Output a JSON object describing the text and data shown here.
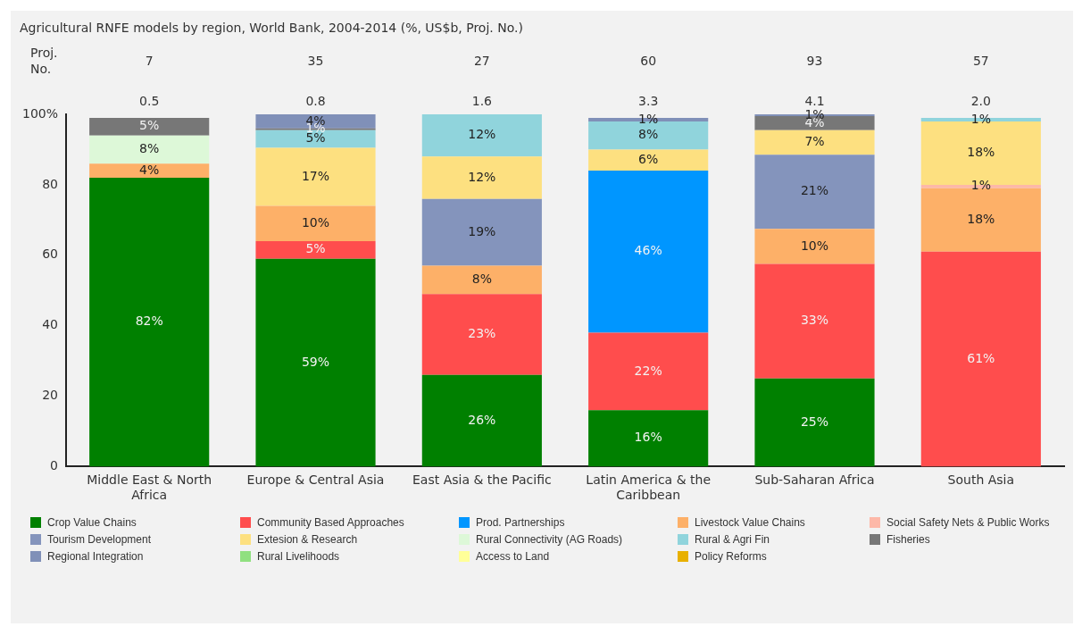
{
  "chart_data": {
    "type": "bar",
    "stacked": true,
    "title": "Agricultural RNFE models by region, World Bank, 2004-2014 (%, US$b, Proj. No.)",
    "categories": [
      "Middle East & North Africa",
      "Europe & Central Asia",
      "East Asia & the Pacific",
      "Latin America & the Caribbean",
      "Sub-Saharan Africa",
      "South Asia"
    ],
    "ylim": [
      0,
      100
    ],
    "yticks": [
      0,
      20,
      40,
      60,
      80,
      {
        "value": 100,
        "label": "100%"
      }
    ],
    "grid": false,
    "legend": "bottom",
    "series": [
      {
        "name": "Crop Value Chains",
        "color": "#008000",
        "values": [
          82,
          59,
          26,
          16,
          25,
          null
        ],
        "value_labels": [
          "82%",
          "59%",
          "26%",
          "16%",
          "25%",
          null
        ]
      },
      {
        "name": "Community Based Approaches",
        "color": "#ff4d4d",
        "values": [
          null,
          5,
          23,
          22,
          32.5,
          61
        ],
        "value_labels": [
          null,
          "5%",
          "23%",
          "22%",
          "33%",
          "61%"
        ]
      },
      {
        "name": "Prod. Partnerships",
        "color": "#0096ff",
        "values": [
          null,
          null,
          null,
          46,
          null,
          null
        ],
        "value_labels": [
          null,
          null,
          null,
          "46%",
          null,
          null
        ]
      },
      {
        "name": "Livestock Value Chains",
        "color": "#fdb068",
        "values": [
          4,
          10,
          8,
          null,
          10,
          18
        ],
        "value_labels": [
          "4%",
          "10%",
          "8%",
          null,
          "10%",
          "18%"
        ]
      },
      {
        "name": "Social Safety Nets & Public Works",
        "color": "#fdb8a8",
        "values": [
          null,
          null,
          null,
          null,
          null,
          1
        ],
        "value_labels": [
          null,
          null,
          null,
          null,
          null,
          "1%"
        ]
      },
      {
        "name": "Tourism Development",
        "color": "#8494bc",
        "values": [
          null,
          null,
          19,
          null,
          21,
          null
        ],
        "value_labels": [
          null,
          null,
          "19%",
          null,
          "21%",
          null
        ]
      },
      {
        "name": "Extesion & Research",
        "color": "#fde080",
        "values": [
          null,
          16.5,
          12,
          6,
          7,
          18
        ],
        "value_labels": [
          null,
          "17%",
          "12%",
          "6%",
          "7%",
          "18%"
        ]
      },
      {
        "name": "Rural Connectivity (AG Roads)",
        "color": "#ddf8d8",
        "values": [
          8,
          null,
          null,
          null,
          null,
          null
        ],
        "value_labels": [
          "8%",
          null,
          null,
          null,
          null,
          null
        ]
      },
      {
        "name": "Rural & Agri Fin",
        "color": "#90d4dc",
        "values": [
          null,
          5,
          12,
          8,
          null,
          1
        ],
        "value_labels": [
          null,
          "5%",
          "12%",
          "8%",
          null,
          "1%"
        ]
      },
      {
        "name": "Fisheries",
        "color": "#777777",
        "values": [
          5,
          0.5,
          null,
          null,
          4,
          null
        ],
        "value_labels": [
          "5%",
          "1%",
          null,
          null,
          "4%",
          null
        ]
      },
      {
        "name": "Regional Integration",
        "color": "#8090b8",
        "values": [
          null,
          4,
          null,
          1,
          0.5,
          null
        ],
        "value_labels": [
          null,
          "4%",
          null,
          "1%",
          "1%",
          null
        ]
      },
      {
        "name": "Rural Livelihoods",
        "color": "#90e080",
        "values": [
          null,
          null,
          null,
          null,
          null,
          null
        ]
      },
      {
        "name": "Access to Land",
        "color": "#ffff99",
        "values": [
          null,
          null,
          null,
          null,
          null,
          null
        ]
      },
      {
        "name": "Policy Reforms",
        "color": "#e8b000",
        "values": [
          null,
          null,
          null,
          null,
          null,
          null
        ]
      }
    ],
    "annotations": [
      "Proj.\nNo.",
      "7",
      "35",
      "27",
      "60",
      "93",
      "57",
      "0.5",
      "0.8",
      "1.6",
      "3.3",
      "4.1",
      "2.0"
    ]
  }
}
